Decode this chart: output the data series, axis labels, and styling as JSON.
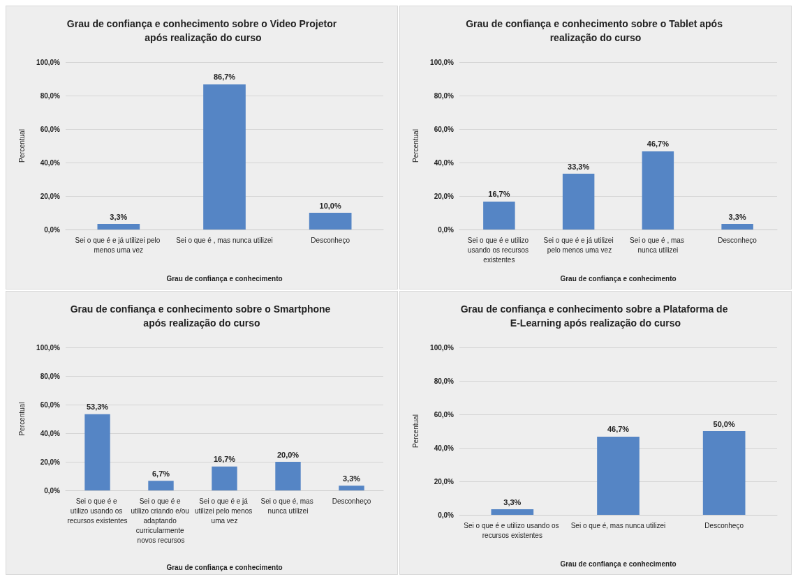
{
  "chart_data": [
    {
      "type": "bar",
      "title": "Grau de confiança e conhecimento sobre o Video Projetor após realização do curso",
      "xlabel": "Grau de confiança e conhecimento",
      "ylabel": "Percentual",
      "categories": [
        "Sei o que é e já utilizei pelo menos uma vez",
        "Sei o que é , mas nunca utilizei",
        "Desconheço"
      ],
      "values": [
        3.3,
        86.7,
        10.0
      ],
      "value_labels": [
        "3,3%",
        "86,7%",
        "10,0%"
      ],
      "color": "#5585c5",
      "ylim": [
        0,
        100
      ],
      "yticks": [
        {
          "value": 0,
          "label": "0,0%"
        },
        {
          "value": 20,
          "label": "20,0%"
        },
        {
          "value": 40,
          "label": "40,0%"
        },
        {
          "value": 60,
          "label": "60,0%"
        },
        {
          "value": 80,
          "label": "80,0%"
        },
        {
          "value": 100,
          "label": "100,0%"
        }
      ],
      "grid": "y"
    },
    {
      "type": "bar",
      "title": "Grau de confiança e conhecimento sobre o Tablet após realização do curso",
      "xlabel": "Grau de confiança e conhecimento",
      "ylabel": "Percentual",
      "categories": [
        "Sei o que é e utilizo usando os recursos existentes",
        "Sei o que é e já utilizei pelo menos uma vez",
        "Sei o que é , mas nunca utilizei",
        "Desconheço"
      ],
      "values": [
        16.7,
        33.3,
        46.7,
        3.3
      ],
      "value_labels": [
        "16,7%",
        "33,3%",
        "46,7%",
        "3,3%"
      ],
      "color": "#5585c5",
      "ylim": [
        0,
        100
      ],
      "yticks": [
        {
          "value": 0,
          "label": "0,0%"
        },
        {
          "value": 20,
          "label": "20,0%"
        },
        {
          "value": 40,
          "label": "40,0%"
        },
        {
          "value": 60,
          "label": "60,0%"
        },
        {
          "value": 80,
          "label": "80,0%"
        },
        {
          "value": 100,
          "label": "100,0%"
        }
      ],
      "grid": "y"
    },
    {
      "type": "bar",
      "title": "Grau de confiança e conhecimento sobre o Smartphone após realização do curso",
      "xlabel": "Grau de confiança e conhecimento",
      "ylabel": "Percentual",
      "categories": [
        "Sei o que é e utilizo usando os recursos existentes",
        "Sei o que é e utilizo criando e/ou adaptando curricularmente novos recursos",
        "Sei o que é e já utilizei pelo menos uma vez",
        "Sei o que é, mas nunca utilizei",
        "Desconheço"
      ],
      "values": [
        53.3,
        6.7,
        16.7,
        20.0,
        3.3
      ],
      "value_labels": [
        "53,3%",
        "6,7%",
        "16,7%",
        "20,0%",
        "3,3%"
      ],
      "color": "#5585c5",
      "ylim": [
        0,
        100
      ],
      "yticks": [
        {
          "value": 0,
          "label": "0,0%"
        },
        {
          "value": 20,
          "label": "20,0%"
        },
        {
          "value": 40,
          "label": "40,0%"
        },
        {
          "value": 60,
          "label": "60,0%"
        },
        {
          "value": 80,
          "label": "80,0%"
        },
        {
          "value": 100,
          "label": "100,0%"
        }
      ],
      "grid": "y"
    },
    {
      "type": "bar",
      "title": "Grau de confiança e conhecimento sobre a Plataforma de E-Learning após realização do curso",
      "xlabel": "Grau de confiança e conhecimento",
      "ylabel": "Percentual",
      "categories": [
        "Sei o que é e utilizo usando os recursos existentes",
        "Sei o que é, mas nunca utilizei",
        "Desconheço"
      ],
      "values": [
        3.3,
        46.7,
        50.0
      ],
      "value_labels": [
        "3,3%",
        "46,7%",
        "50,0%"
      ],
      "color": "#5585c5",
      "ylim": [
        0,
        100
      ],
      "yticks": [
        {
          "value": 0,
          "label": "0,0%"
        },
        {
          "value": 20,
          "label": "20,0%"
        },
        {
          "value": 40,
          "label": "40,0%"
        },
        {
          "value": 60,
          "label": "60,0%"
        },
        {
          "value": 80,
          "label": "80,0%"
        },
        {
          "value": 100,
          "label": "100,0%"
        }
      ],
      "grid": "y"
    }
  ]
}
